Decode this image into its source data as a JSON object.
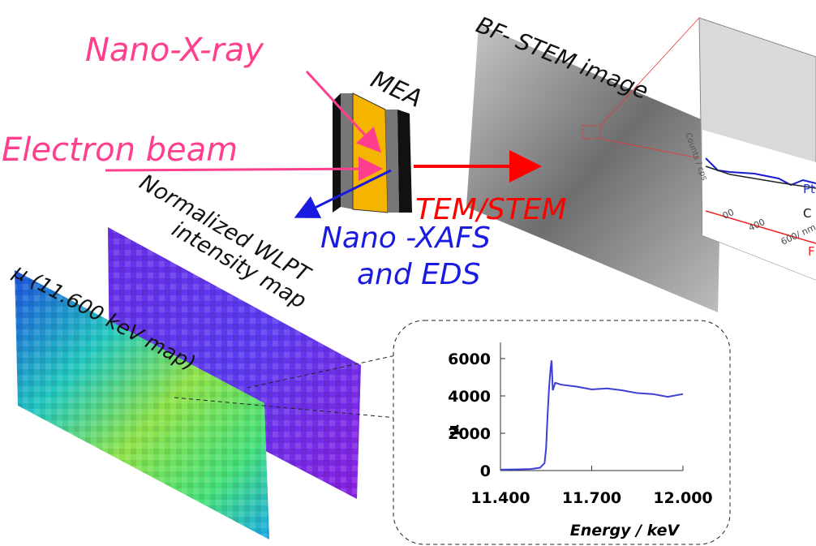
{
  "labels": {
    "nano_xray": "Nano-X-ray",
    "electron_beam": "Electron beam",
    "mea": "MEA",
    "stem_image": "BF- STEM image",
    "tem_stem": "TEM/STEM",
    "xafs_line1": "Nano -XAFS",
    "xafs_line2": "and EDS",
    "wlpt_line1": "Normalized WLPT",
    "wlpt_line2": "intensity map",
    "mu_map": "μ (11.600 keV map)",
    "stem_axis": "Counts / cps",
    "stem_pt": "Pt",
    "stem_c": "C",
    "stem_f": "F",
    "stem_x600": "600/ nm",
    "stem_x400": "400",
    "stem_x200": "00"
  },
  "chart_data": {
    "type": "line",
    "ylabel": "μ",
    "xlabel": "Energy / keV",
    "x": [
      11.4,
      11.45,
      11.5,
      11.53,
      11.545,
      11.55,
      11.555,
      11.56,
      11.565,
      11.568,
      11.572,
      11.58,
      11.6,
      11.65,
      11.7,
      11.75,
      11.8,
      11.85,
      11.9,
      11.95,
      12.0
    ],
    "series": [
      {
        "name": "μ",
        "color": "#3b3fd6",
        "values": [
          50,
          60,
          80,
          150,
          400,
          1200,
          3000,
          4500,
          5500,
          5900,
          4300,
          4700,
          4600,
          4500,
          4350,
          4400,
          4300,
          4150,
          4100,
          3950,
          4100
        ]
      }
    ],
    "xlim": [
      11.4,
      12.0
    ],
    "ylim": [
      0,
      6000
    ],
    "xticks": [
      {
        "value": 11.4,
        "label": "11.400"
      },
      {
        "value": 11.7,
        "label": "11.700"
      },
      {
        "value": 12.0,
        "label": "12.000"
      }
    ],
    "yticks": [
      0,
      2000,
      4000,
      6000
    ]
  }
}
